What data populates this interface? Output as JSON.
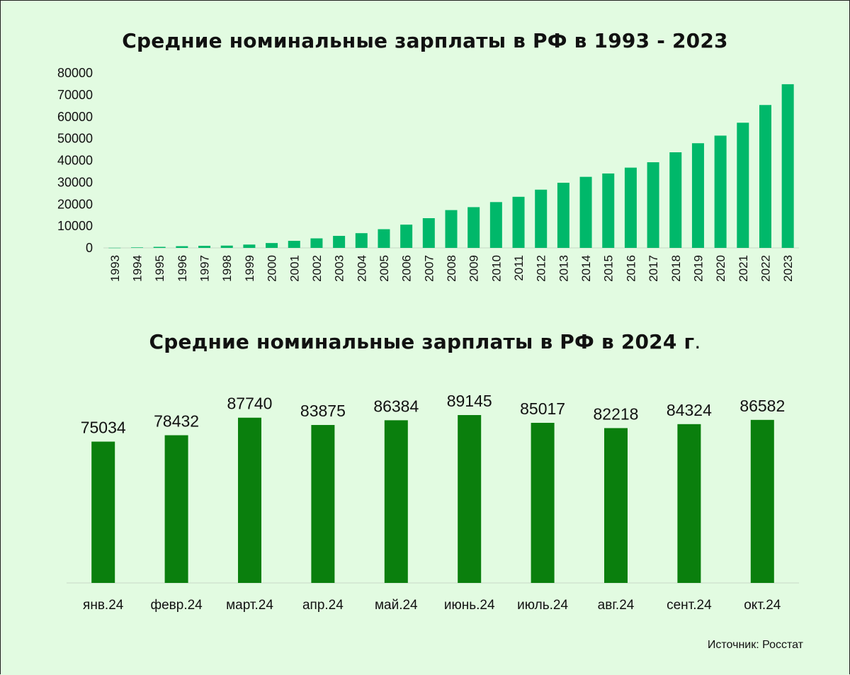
{
  "colors": {
    "background": "#e2fbe1",
    "bars_yearly": "#00b86a",
    "bars_monthly": "#0a7f0d",
    "axis": "#c8d8c8"
  },
  "source": "Источник: Росстат",
  "chart_data": [
    {
      "type": "bar",
      "title": "Средние номинальные зарплаты в РФ в 1993 - 2023",
      "xlabel": "",
      "ylabel": "",
      "ylim": [
        0,
        80000
      ],
      "yticks": [
        0,
        10000,
        20000,
        30000,
        40000,
        50000,
        60000,
        70000,
        80000
      ],
      "categories": [
        "1993",
        "1994",
        "1995",
        "1996",
        "1997",
        "1998",
        "1999",
        "2000",
        "2001",
        "2002",
        "2003",
        "2004",
        "2005",
        "2006",
        "2007",
        "2008",
        "2009",
        "2010",
        "2011",
        "2012",
        "2013",
        "2014",
        "2015",
        "2016",
        "2017",
        "2018",
        "2019",
        "2020",
        "2021",
        "2022",
        "2023"
      ],
      "values": [
        58,
        221,
        472,
        790,
        950,
        1051,
        1523,
        2223,
        3240,
        4360,
        5499,
        6740,
        8555,
        10634,
        13593,
        17290,
        18638,
        20952,
        23369,
        26629,
        29792,
        32495,
        34030,
        36709,
        39167,
        43724,
        47867,
        51344,
        57244,
        65338,
        74854
      ]
    },
    {
      "type": "bar",
      "title": "Средние номинальные зарплаты в РФ в 2024 г",
      "title_suffix": ".",
      "categories": [
        "янв.24",
        "февр.24",
        "март.24",
        "апр.24",
        "май.24",
        "июнь.24",
        "июль.24",
        "авг.24",
        "сент.24",
        "окт.24"
      ],
      "values": [
        75034,
        78432,
        87740,
        83875,
        86384,
        89145,
        85017,
        82218,
        84324,
        86582
      ],
      "ylim": [
        0,
        90000
      ]
    }
  ]
}
